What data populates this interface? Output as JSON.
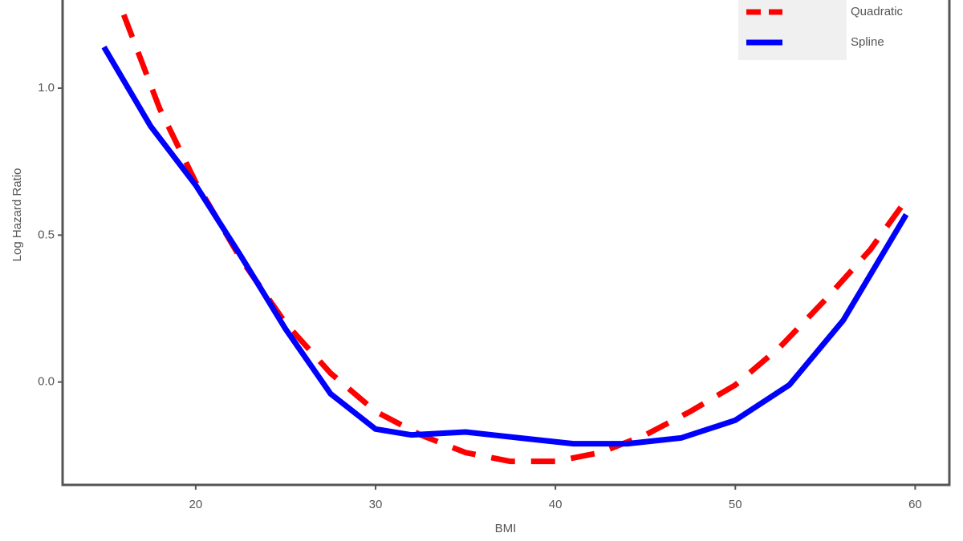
{
  "chart_data": {
    "type": "line",
    "x_label": "BMI",
    "y_label": "Log Hazard Ratio",
    "xlim": [
      12.6,
      61.9
    ],
    "ylim": [
      -0.35,
      1.3
    ],
    "xticks": [
      20,
      30,
      40,
      50,
      60
    ],
    "yticks": [
      {
        "value": 0,
        "label": "0.0"
      },
      0.5,
      {
        "value": 1,
        "label": "1.0"
      }
    ],
    "legend": "top-right",
    "series": [
      {
        "name": "Quadratic",
        "color": "#ff0000",
        "dashed": true,
        "x": [
          16,
          18,
          20,
          22.5,
          25,
          27.5,
          30,
          32.5,
          35,
          37.5,
          40,
          42.5,
          45,
          47.5,
          50,
          52.5,
          55,
          57.5,
          59.5
        ],
        "values": [
          1.25,
          0.93,
          0.68,
          0.42,
          0.2,
          0.03,
          -0.1,
          -0.18,
          -0.24,
          -0.27,
          -0.27,
          -0.24,
          -0.18,
          -0.1,
          -0.01,
          0.12,
          0.28,
          0.45,
          0.62
        ]
      },
      {
        "name": "Spline",
        "color": "#0000ff",
        "dashed": false,
        "x": [
          14.9,
          17.5,
          20,
          22.5,
          25,
          27.5,
          30,
          32,
          35,
          38,
          41,
          44,
          47,
          50,
          53,
          56,
          59.5
        ],
        "values": [
          1.14,
          0.87,
          0.67,
          0.43,
          0.18,
          -0.04,
          -0.16,
          -0.18,
          -0.17,
          -0.19,
          -0.21,
          -0.21,
          -0.19,
          -0.13,
          -0.01,
          0.21,
          0.57
        ]
      }
    ]
  }
}
